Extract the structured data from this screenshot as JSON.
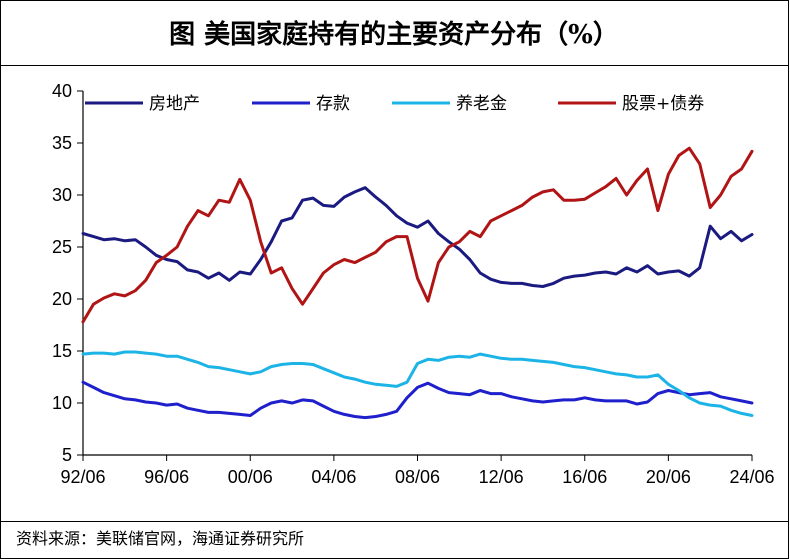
{
  "title": "图 美国家庭持有的主要资产分布（%）",
  "source": "资料来源：美联储官网，海通证券研究所",
  "chart_data": {
    "type": "line",
    "title": "图 美国家庭持有的主要资产分布（%）",
    "xlabel": "",
    "ylabel": "",
    "ylim": [
      5,
      40
    ],
    "yticks": [
      5,
      10,
      15,
      20,
      25,
      30,
      35,
      40
    ],
    "xlim": [
      1992.5,
      2024.5
    ],
    "xticks": [
      {
        "label": "92/06",
        "value": 1992.5
      },
      {
        "label": "96/06",
        "value": 1996.5
      },
      {
        "label": "00/06",
        "value": 2000.5
      },
      {
        "label": "04/06",
        "value": 2004.5
      },
      {
        "label": "08/06",
        "value": 2008.5
      },
      {
        "label": "12/06",
        "value": 2012.5
      },
      {
        "label": "16/06",
        "value": 2016.5
      },
      {
        "label": "20/06",
        "value": 2020.5
      },
      {
        "label": "24/06",
        "value": 2024.5
      }
    ],
    "grid": false,
    "legend_position": "top",
    "series": [
      {
        "name": "房地产",
        "color": "#1a1a80",
        "points": [
          [
            1992.5,
            26.3
          ],
          [
            1993,
            26.0
          ],
          [
            1993.5,
            25.7
          ],
          [
            1994,
            25.8
          ],
          [
            1994.5,
            25.6
          ],
          [
            1995,
            25.7
          ],
          [
            1995.5,
            25.0
          ],
          [
            1996,
            24.2
          ],
          [
            1996.5,
            23.8
          ],
          [
            1997,
            23.6
          ],
          [
            1997.5,
            22.8
          ],
          [
            1998,
            22.6
          ],
          [
            1998.5,
            22.0
          ],
          [
            1999,
            22.5
          ],
          [
            1999.5,
            21.8
          ],
          [
            2000,
            22.6
          ],
          [
            2000.5,
            22.4
          ],
          [
            2001,
            23.8
          ],
          [
            2001.5,
            25.5
          ],
          [
            2002,
            27.5
          ],
          [
            2002.5,
            27.8
          ],
          [
            2003,
            29.5
          ],
          [
            2003.5,
            29.7
          ],
          [
            2004,
            29.0
          ],
          [
            2004.5,
            28.9
          ],
          [
            2005,
            29.8
          ],
          [
            2005.5,
            30.3
          ],
          [
            2006,
            30.7
          ],
          [
            2006.5,
            29.8
          ],
          [
            2007,
            29.0
          ],
          [
            2007.5,
            28.0
          ],
          [
            2008,
            27.3
          ],
          [
            2008.5,
            26.9
          ],
          [
            2009,
            27.5
          ],
          [
            2009.5,
            26.3
          ],
          [
            2010,
            25.5
          ],
          [
            2010.5,
            24.8
          ],
          [
            2011,
            23.8
          ],
          [
            2011.5,
            22.5
          ],
          [
            2012,
            21.9
          ],
          [
            2012.5,
            21.6
          ],
          [
            2013,
            21.5
          ],
          [
            2013.5,
            21.5
          ],
          [
            2014,
            21.3
          ],
          [
            2014.5,
            21.2
          ],
          [
            2015,
            21.5
          ],
          [
            2015.5,
            22.0
          ],
          [
            2016,
            22.2
          ],
          [
            2016.5,
            22.3
          ],
          [
            2017,
            22.5
          ],
          [
            2017.5,
            22.6
          ],
          [
            2018,
            22.4
          ],
          [
            2018.5,
            23.0
          ],
          [
            2019,
            22.6
          ],
          [
            2019.5,
            23.2
          ],
          [
            2020,
            22.4
          ],
          [
            2020.5,
            22.6
          ],
          [
            2021,
            22.7
          ],
          [
            2021.5,
            22.2
          ],
          [
            2022,
            23.0
          ],
          [
            2022.5,
            27.0
          ],
          [
            2023,
            25.8
          ],
          [
            2023.5,
            26.5
          ],
          [
            2024,
            25.6
          ],
          [
            2024.5,
            26.2
          ]
        ]
      },
      {
        "name": "存款",
        "color": "#1f1fcc",
        "points": [
          [
            1992.5,
            12.0
          ],
          [
            1993,
            11.5
          ],
          [
            1993.5,
            11.0
          ],
          [
            1994,
            10.7
          ],
          [
            1994.5,
            10.4
          ],
          [
            1995,
            10.3
          ],
          [
            1995.5,
            10.1
          ],
          [
            1996,
            10.0
          ],
          [
            1996.5,
            9.8
          ],
          [
            1997,
            9.9
          ],
          [
            1997.5,
            9.5
          ],
          [
            1998,
            9.3
          ],
          [
            1998.5,
            9.1
          ],
          [
            1999,
            9.1
          ],
          [
            1999.5,
            9.0
          ],
          [
            2000,
            8.9
          ],
          [
            2000.5,
            8.8
          ],
          [
            2001,
            9.5
          ],
          [
            2001.5,
            10.0
          ],
          [
            2002,
            10.2
          ],
          [
            2002.5,
            10.0
          ],
          [
            2003,
            10.3
          ],
          [
            2003.5,
            10.2
          ],
          [
            2004,
            9.7
          ],
          [
            2004.5,
            9.2
          ],
          [
            2005,
            8.9
          ],
          [
            2005.5,
            8.7
          ],
          [
            2006,
            8.6
          ],
          [
            2006.5,
            8.7
          ],
          [
            2007,
            8.9
          ],
          [
            2007.5,
            9.2
          ],
          [
            2008,
            10.5
          ],
          [
            2008.5,
            11.5
          ],
          [
            2009,
            11.9
          ],
          [
            2009.5,
            11.4
          ],
          [
            2010,
            11.0
          ],
          [
            2010.5,
            10.9
          ],
          [
            2011,
            10.8
          ],
          [
            2011.5,
            11.2
          ],
          [
            2012,
            10.9
          ],
          [
            2012.5,
            10.9
          ],
          [
            2013,
            10.6
          ],
          [
            2013.5,
            10.4
          ],
          [
            2014,
            10.2
          ],
          [
            2014.5,
            10.1
          ],
          [
            2015,
            10.2
          ],
          [
            2015.5,
            10.3
          ],
          [
            2016,
            10.3
          ],
          [
            2016.5,
            10.5
          ],
          [
            2017,
            10.3
          ],
          [
            2017.5,
            10.2
          ],
          [
            2018,
            10.2
          ],
          [
            2018.5,
            10.2
          ],
          [
            2019,
            9.9
          ],
          [
            2019.5,
            10.1
          ],
          [
            2020,
            10.9
          ],
          [
            2020.5,
            11.2
          ],
          [
            2021,
            11.0
          ],
          [
            2021.5,
            10.8
          ],
          [
            2022,
            10.9
          ],
          [
            2022.5,
            11.0
          ],
          [
            2023,
            10.6
          ],
          [
            2023.5,
            10.4
          ],
          [
            2024,
            10.2
          ],
          [
            2024.5,
            10.0
          ]
        ]
      },
      {
        "name": "养老金",
        "color": "#1cb4e6",
        "points": [
          [
            1992.5,
            14.7
          ],
          [
            1993,
            14.8
          ],
          [
            1993.5,
            14.8
          ],
          [
            1994,
            14.7
          ],
          [
            1994.5,
            14.9
          ],
          [
            1995,
            14.9
          ],
          [
            1995.5,
            14.8
          ],
          [
            1996,
            14.7
          ],
          [
            1996.5,
            14.5
          ],
          [
            1997,
            14.5
          ],
          [
            1997.5,
            14.2
          ],
          [
            1998,
            13.9
          ],
          [
            1998.5,
            13.5
          ],
          [
            1999,
            13.4
          ],
          [
            1999.5,
            13.2
          ],
          [
            2000,
            13.0
          ],
          [
            2000.5,
            12.8
          ],
          [
            2001,
            13.0
          ],
          [
            2001.5,
            13.5
          ],
          [
            2002,
            13.7
          ],
          [
            2002.5,
            13.8
          ],
          [
            2003,
            13.8
          ],
          [
            2003.5,
            13.7
          ],
          [
            2004,
            13.3
          ],
          [
            2004.5,
            12.9
          ],
          [
            2005,
            12.5
          ],
          [
            2005.5,
            12.3
          ],
          [
            2006,
            12.0
          ],
          [
            2006.5,
            11.8
          ],
          [
            2007,
            11.7
          ],
          [
            2007.5,
            11.6
          ],
          [
            2008,
            12.0
          ],
          [
            2008.5,
            13.8
          ],
          [
            2009,
            14.2
          ],
          [
            2009.5,
            14.1
          ],
          [
            2010,
            14.4
          ],
          [
            2010.5,
            14.5
          ],
          [
            2011,
            14.4
          ],
          [
            2011.5,
            14.7
          ],
          [
            2012,
            14.5
          ],
          [
            2012.5,
            14.3
          ],
          [
            2013,
            14.2
          ],
          [
            2013.5,
            14.2
          ],
          [
            2014,
            14.1
          ],
          [
            2014.5,
            14.0
          ],
          [
            2015,
            13.9
          ],
          [
            2015.5,
            13.7
          ],
          [
            2016,
            13.5
          ],
          [
            2016.5,
            13.4
          ],
          [
            2017,
            13.2
          ],
          [
            2017.5,
            13.0
          ],
          [
            2018,
            12.8
          ],
          [
            2018.5,
            12.7
          ],
          [
            2019,
            12.5
          ],
          [
            2019.5,
            12.5
          ],
          [
            2020,
            12.7
          ],
          [
            2020.5,
            11.8
          ],
          [
            2021,
            11.2
          ],
          [
            2021.5,
            10.5
          ],
          [
            2022,
            10.0
          ],
          [
            2022.5,
            9.8
          ],
          [
            2023,
            9.7
          ],
          [
            2023.5,
            9.3
          ],
          [
            2024,
            9.0
          ],
          [
            2024.5,
            8.8
          ]
        ]
      },
      {
        "name": "股票+债券",
        "color": "#b01414",
        "points": [
          [
            1992.5,
            17.8
          ],
          [
            1993,
            19.5
          ],
          [
            1993.5,
            20.1
          ],
          [
            1994,
            20.5
          ],
          [
            1994.5,
            20.3
          ],
          [
            1995,
            20.8
          ],
          [
            1995.5,
            21.8
          ],
          [
            1996,
            23.5
          ],
          [
            1996.5,
            24.2
          ],
          [
            1997,
            25.0
          ],
          [
            1997.5,
            27.0
          ],
          [
            1998,
            28.5
          ],
          [
            1998.5,
            28.0
          ],
          [
            1999,
            29.5
          ],
          [
            1999.5,
            29.3
          ],
          [
            2000,
            31.5
          ],
          [
            2000.5,
            29.5
          ],
          [
            2001,
            25.5
          ],
          [
            2001.5,
            22.5
          ],
          [
            2002,
            23.0
          ],
          [
            2002.5,
            21.0
          ],
          [
            2003,
            19.5
          ],
          [
            2003.5,
            21.0
          ],
          [
            2004,
            22.5
          ],
          [
            2004.5,
            23.3
          ],
          [
            2005,
            23.8
          ],
          [
            2005.5,
            23.5
          ],
          [
            2006,
            24.0
          ],
          [
            2006.5,
            24.5
          ],
          [
            2007,
            25.5
          ],
          [
            2007.5,
            26.0
          ],
          [
            2008,
            26.0
          ],
          [
            2008.5,
            22.0
          ],
          [
            2009,
            19.8
          ],
          [
            2009.5,
            23.5
          ],
          [
            2010,
            25.0
          ],
          [
            2010.5,
            25.5
          ],
          [
            2011,
            26.5
          ],
          [
            2011.5,
            26.0
          ],
          [
            2012,
            27.5
          ],
          [
            2012.5,
            28.0
          ],
          [
            2013,
            28.5
          ],
          [
            2013.5,
            29.0
          ],
          [
            2014,
            29.8
          ],
          [
            2014.5,
            30.3
          ],
          [
            2015,
            30.5
          ],
          [
            2015.5,
            29.5
          ],
          [
            2016,
            29.5
          ],
          [
            2016.5,
            29.6
          ],
          [
            2017,
            30.2
          ],
          [
            2017.5,
            30.8
          ],
          [
            2018,
            31.6
          ],
          [
            2018.5,
            30.0
          ],
          [
            2019,
            31.4
          ],
          [
            2019.5,
            32.5
          ],
          [
            2020,
            28.5
          ],
          [
            2020.5,
            32.0
          ],
          [
            2021,
            33.8
          ],
          [
            2021.5,
            34.5
          ],
          [
            2022,
            33.0
          ],
          [
            2022.5,
            28.8
          ],
          [
            2023,
            30.0
          ],
          [
            2023.5,
            31.8
          ],
          [
            2024,
            32.5
          ],
          [
            2024.5,
            34.2
          ]
        ]
      }
    ]
  }
}
